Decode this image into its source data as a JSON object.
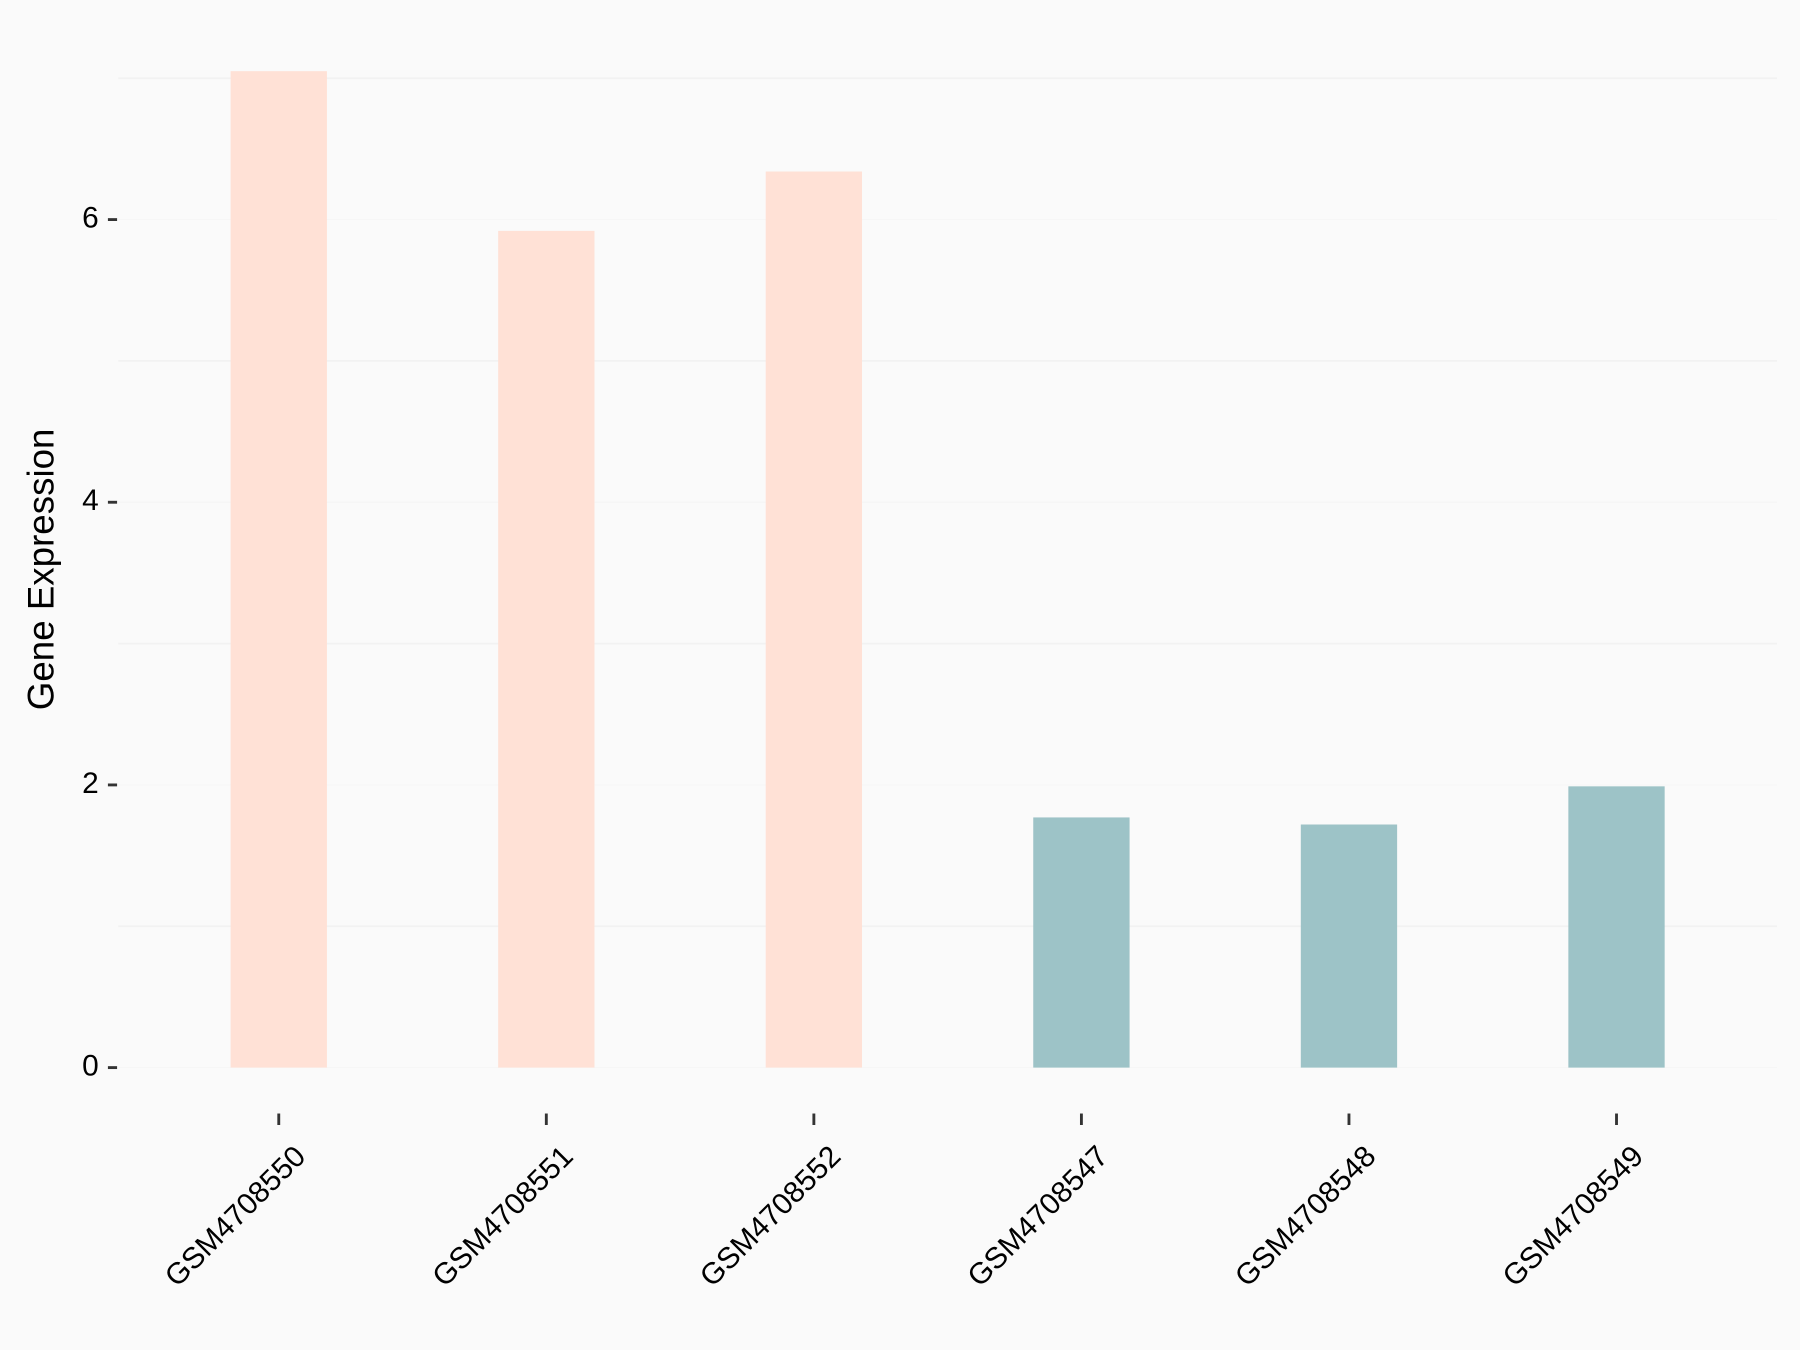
{
  "chart_data": {
    "type": "bar",
    "y_label": "Gene Expression",
    "categories": [
      "GSM4708550",
      "GSM4708551",
      "GSM4708552",
      "GSM4708547",
      "GSM4708548",
      "GSM4708549"
    ],
    "values": [
      7.05,
      5.92,
      6.34,
      1.77,
      1.72,
      1.99
    ],
    "colors": [
      "#ffe1d6",
      "#ffe1d6",
      "#ffe1d6",
      "#9dc3c7",
      "#9dc3c7",
      "#9dc3c7"
    ],
    "ylim": [
      0,
      7.05
    ],
    "yticks": [
      0,
      2,
      4,
      6
    ],
    "minor_yticks": [
      1,
      3,
      5,
      7
    ],
    "grid": true
  }
}
